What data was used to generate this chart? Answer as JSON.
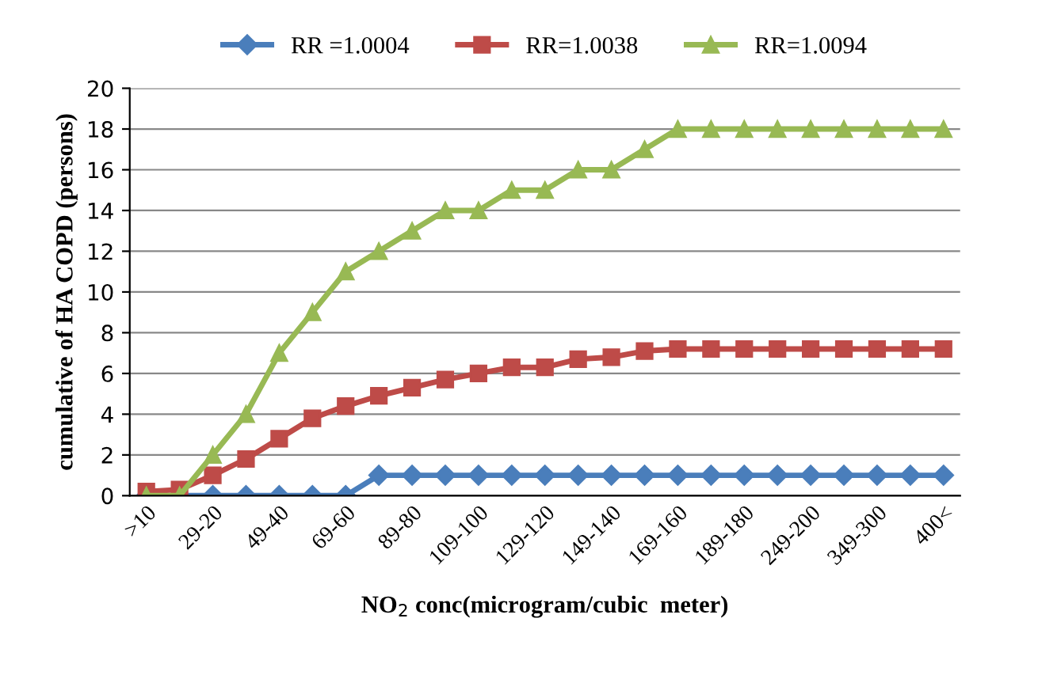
{
  "chart_data": {
    "type": "line",
    "xlabel": "NO$_{2}$ conc(microgram/cubic  meter)",
    "ylabel": "cumulative of HA COPD (persons)",
    "categories": [
      ">10",
      null,
      "29-20",
      null,
      "49-40",
      null,
      "69-60",
      null,
      "89-80",
      null,
      "109-100",
      null,
      "129-120",
      null,
      "149-140",
      null,
      "169-160",
      null,
      "189-180",
      null,
      "249-200",
      null,
      "349-300",
      null,
      "400<"
    ],
    "series": [
      {
        "name": "RR =1.0004",
        "color": "#4a7ebb",
        "marker": "diamond",
        "values": [
          0,
          0,
          0,
          0,
          0,
          0,
          0,
          1,
          1,
          1,
          1,
          1,
          1,
          1,
          1,
          1,
          1,
          1,
          1,
          1,
          1,
          1,
          1,
          1,
          1
        ]
      },
      {
        "name": "RR=1.0038",
        "color": "#be4b48",
        "marker": "square",
        "values": [
          0.2,
          0.3,
          1,
          1.8,
          2.8,
          3.8,
          4.4,
          4.9,
          5.3,
          5.7,
          6,
          6.3,
          6.3,
          6.7,
          6.8,
          7.1,
          7.2,
          7.2,
          7.2,
          7.2,
          7.2,
          7.2,
          7.2,
          7.2,
          7.2
        ]
      },
      {
        "name": "RR=1.0094",
        "color": "#98b954",
        "marker": "triangle",
        "values": [
          0,
          0,
          2,
          4,
          7,
          9,
          11,
          12,
          13,
          14,
          14,
          15,
          15,
          16,
          16,
          17,
          18,
          18,
          18,
          18,
          18,
          18,
          18,
          18,
          18
        ]
      }
    ],
    "ylim": [
      0,
      20
    ],
    "yticks": [
      0,
      2,
      4,
      6,
      8,
      10,
      12,
      14,
      16,
      18,
      20
    ],
    "grid": "y",
    "legend": "top"
  }
}
